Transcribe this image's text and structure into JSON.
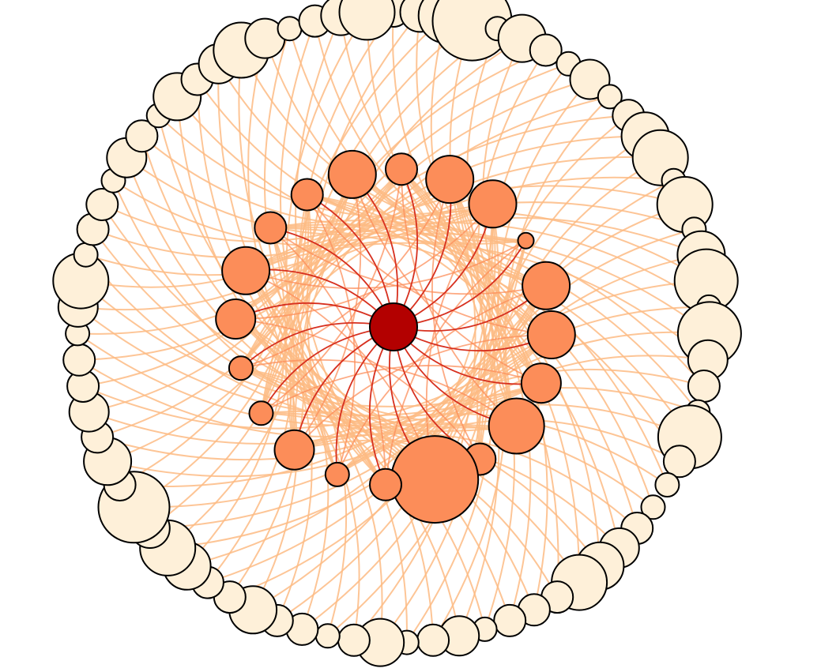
{
  "graph": {
    "type": "radial-network",
    "colors": {
      "background": "#ffffff",
      "center_node": "#b30000",
      "inner_ring_node": "#fc8d59",
      "outer_ring_node": "#fef0d9",
      "node_stroke": "#000000",
      "center_edge": "#d7301f",
      "inner_edge": "#fc8d59",
      "outer_edge": "#fdbb84"
    },
    "center": {
      "id": "hub",
      "size": 3
    },
    "inner_ring": {
      "node_count": 20,
      "sizes": [
        2,
        3,
        3,
        1,
        3,
        3,
        2.5,
        3.5,
        2,
        5.5,
        2,
        1.5,
        2.5,
        1.5,
        1.5,
        2.5,
        3,
        2,
        2,
        3
      ]
    },
    "outer_ring": {
      "node_count": 75,
      "sizes": [
        2,
        2.5,
        3.5,
        5,
        1.5,
        3,
        2,
        1.5,
        2.5,
        1.5,
        2,
        3,
        3.5,
        1.5,
        3.5,
        1.5,
        3,
        4,
        1.5,
        4,
        2.5,
        2,
        1.5,
        4,
        2,
        1.5,
        1.5,
        2,
        2.5,
        3,
        3.5,
        2,
        2,
        2,
        1.5,
        2.5,
        2,
        1.5,
        3,
        2,
        1.5,
        2,
        2,
        3,
        2,
        2,
        3,
        3.5,
        2.5,
        4.5,
        2,
        3,
        2,
        2.5,
        2,
        2,
        1.5,
        2.5,
        3.5,
        1.5,
        2,
        2,
        1.5,
        2.5,
        2,
        1.5,
        3,
        2,
        2.5,
        3.5,
        2.5,
        1.5,
        2,
        2.5,
        3.5
      ]
    }
  }
}
